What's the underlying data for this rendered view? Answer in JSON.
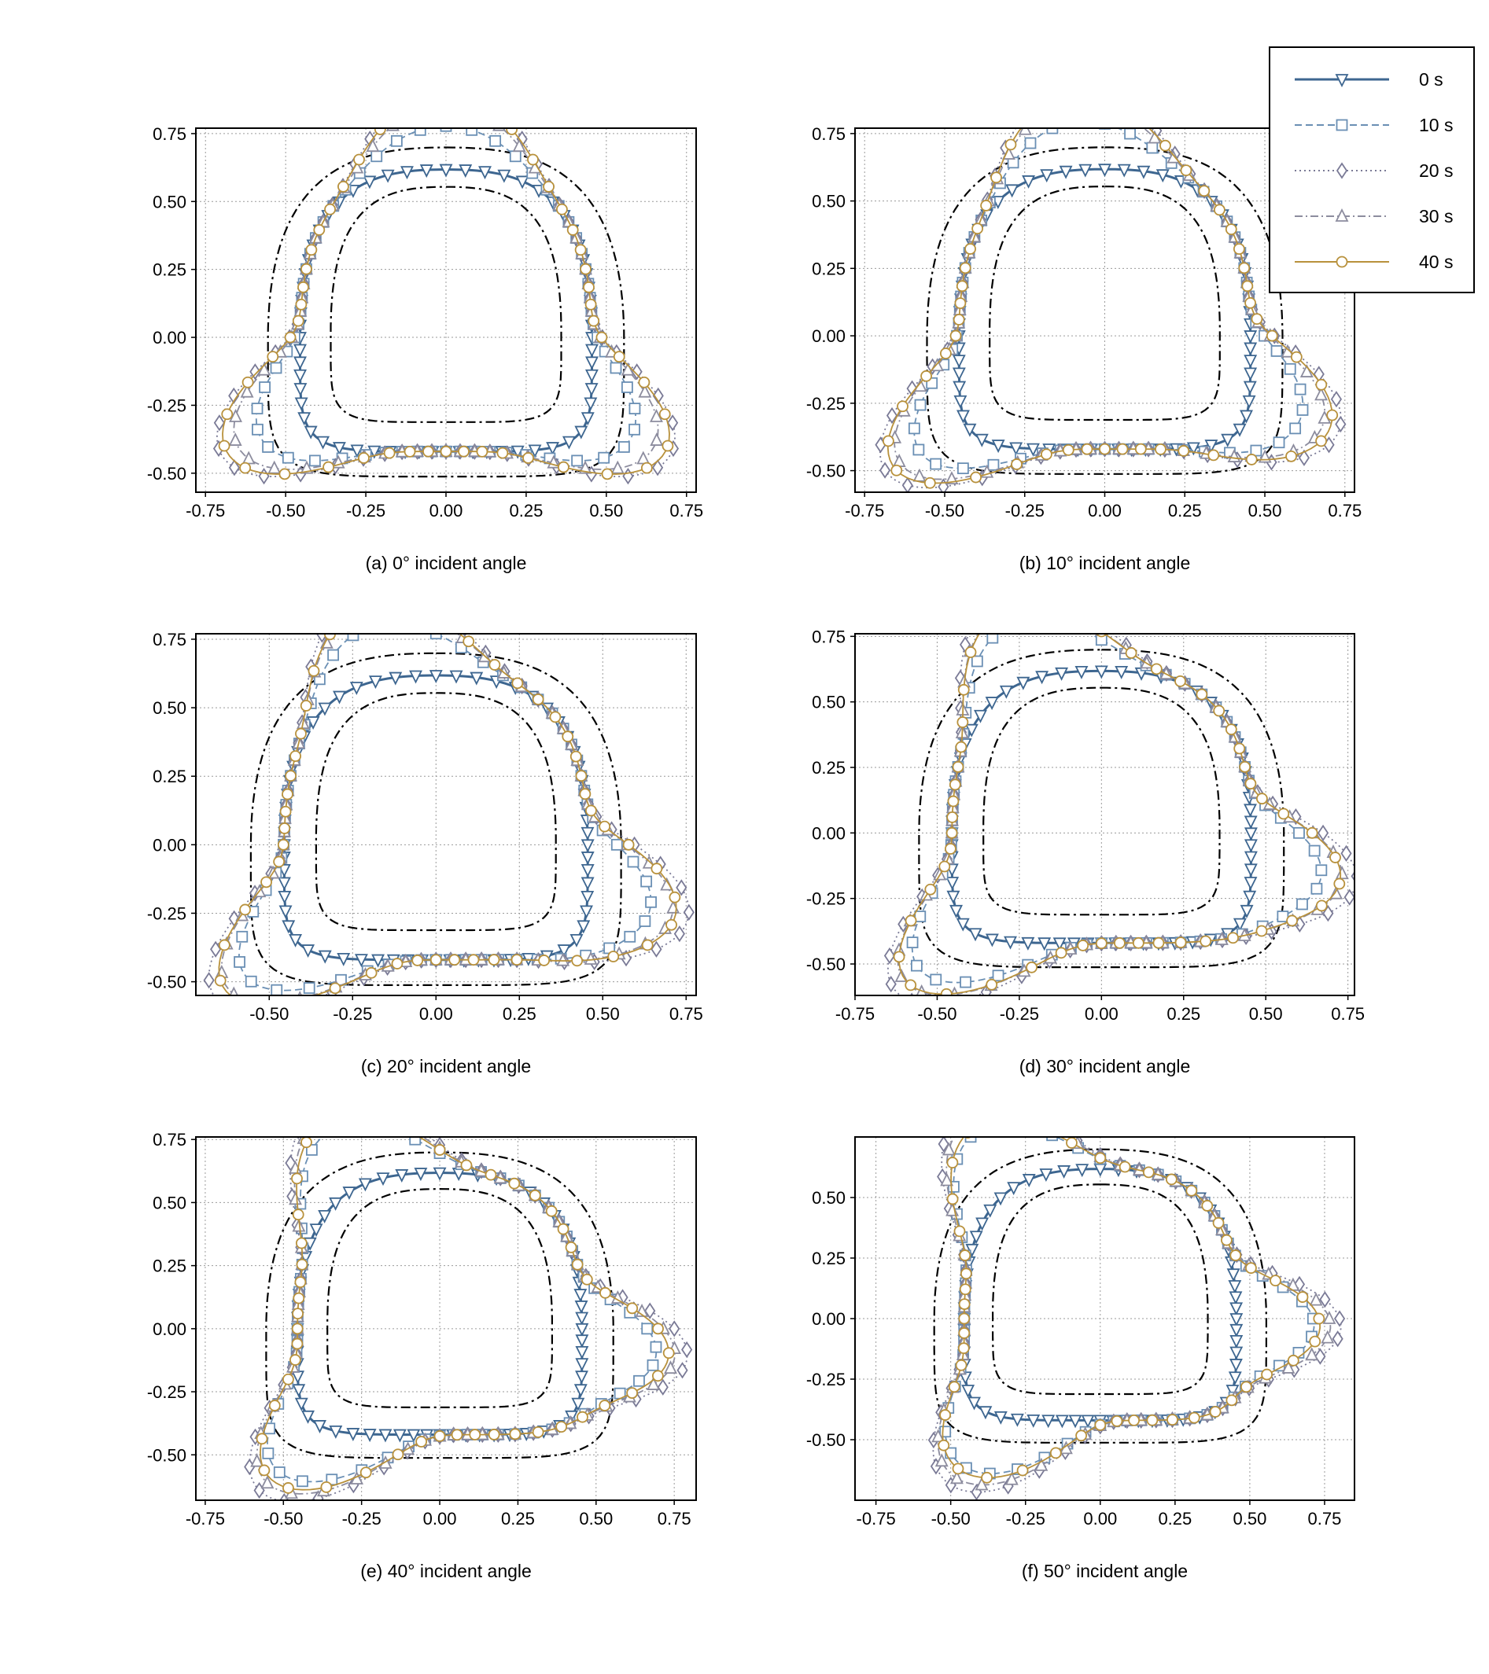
{
  "legend": {
    "placement": "top-right",
    "entries": [
      {
        "label": "0 s",
        "color": "#3d6690",
        "marker": "triangle-down",
        "dash": "solid"
      },
      {
        "label": "10 s",
        "color": "#6a8fb4",
        "marker": "square",
        "dash": "dashed"
      },
      {
        "label": "20 s",
        "color": "#7a7a96",
        "marker": "diamond",
        "dash": "dotted"
      },
      {
        "label": "30 s",
        "color": "#8c8c9e",
        "marker": "triangle-up",
        "dash": "dashdot"
      },
      {
        "label": "40 s",
        "color": "#b8913c",
        "marker": "circle",
        "dash": "solid"
      }
    ]
  },
  "envelope": {
    "color": "#000000",
    "dash": "dashdot",
    "description_levels": [
      "outer",
      "inner"
    ]
  },
  "chart_data": [
    {
      "type": "line",
      "caption": "(a) 0° incident angle",
      "angle_deg": 0,
      "xlim": [
        -0.78,
        0.78
      ],
      "ylim": [
        -0.57,
        0.77
      ],
      "xticks": [
        "-0.75",
        "-0.50",
        "-0.25",
        "0.00",
        "0.25",
        "0.50",
        "0.75"
      ],
      "yticks": [
        "-0.50",
        "-0.25",
        "0.00",
        "0.25",
        "0.50",
        "0.75"
      ],
      "grid": true
    },
    {
      "type": "line",
      "caption": "(b) 10° incident angle",
      "angle_deg": 10,
      "xlim": [
        -0.78,
        0.78
      ],
      "ylim": [
        -0.58,
        0.77
      ],
      "xticks": [
        "-0.75",
        "-0.50",
        "-0.25",
        "0.00",
        "0.25",
        "0.50",
        "0.75"
      ],
      "yticks": [
        "-0.50",
        "-0.25",
        "0.00",
        "0.25",
        "0.50",
        "0.75"
      ],
      "grid": true
    },
    {
      "type": "line",
      "caption": "(c) 20° incident angle",
      "angle_deg": 20,
      "xlim": [
        -0.72,
        0.78
      ],
      "ylim": [
        -0.55,
        0.77
      ],
      "xticks": [
        "-0.50",
        "-0.25",
        "0.00",
        "0.25",
        "0.50",
        "0.75"
      ],
      "yticks": [
        "-0.50",
        "-0.25",
        "0.00",
        "0.25",
        "0.50",
        "0.75"
      ],
      "grid": true
    },
    {
      "type": "line",
      "caption": "(d) 30° incident angle",
      "angle_deg": 30,
      "xlim": [
        -0.75,
        0.77
      ],
      "ylim": [
        -0.62,
        0.76
      ],
      "xticks": [
        "-0.75",
        "-0.50",
        "-0.25",
        "0.00",
        "0.25",
        "0.50",
        "0.75"
      ],
      "yticks": [
        "-0.50",
        "-0.25",
        "0.00",
        "0.25",
        "0.50",
        "0.75"
      ],
      "grid": true
    },
    {
      "type": "line",
      "caption": "(e) 40° incident angle",
      "angle_deg": 40,
      "xlim": [
        -0.78,
        0.82
      ],
      "ylim": [
        -0.68,
        0.76
      ],
      "xticks": [
        "-0.75",
        "-0.50",
        "-0.25",
        "0.00",
        "0.25",
        "0.50",
        "0.75"
      ],
      "yticks": [
        "-0.50",
        "-0.25",
        "0.00",
        "0.25",
        "0.50",
        "0.75"
      ],
      "grid": true
    },
    {
      "type": "line",
      "caption": "(f) 50° incident angle",
      "angle_deg": 50,
      "xlim": [
        -0.82,
        0.85
      ],
      "ylim": [
        -0.75,
        0.75
      ],
      "xticks": [
        "-0.75",
        "-0.50",
        "-0.25",
        "0.00",
        "0.25",
        "0.50",
        "0.75"
      ],
      "yticks": [
        "-0.50",
        "-0.25",
        "0.00",
        "0.25",
        "0.50"
      ],
      "grid": true
    }
  ]
}
